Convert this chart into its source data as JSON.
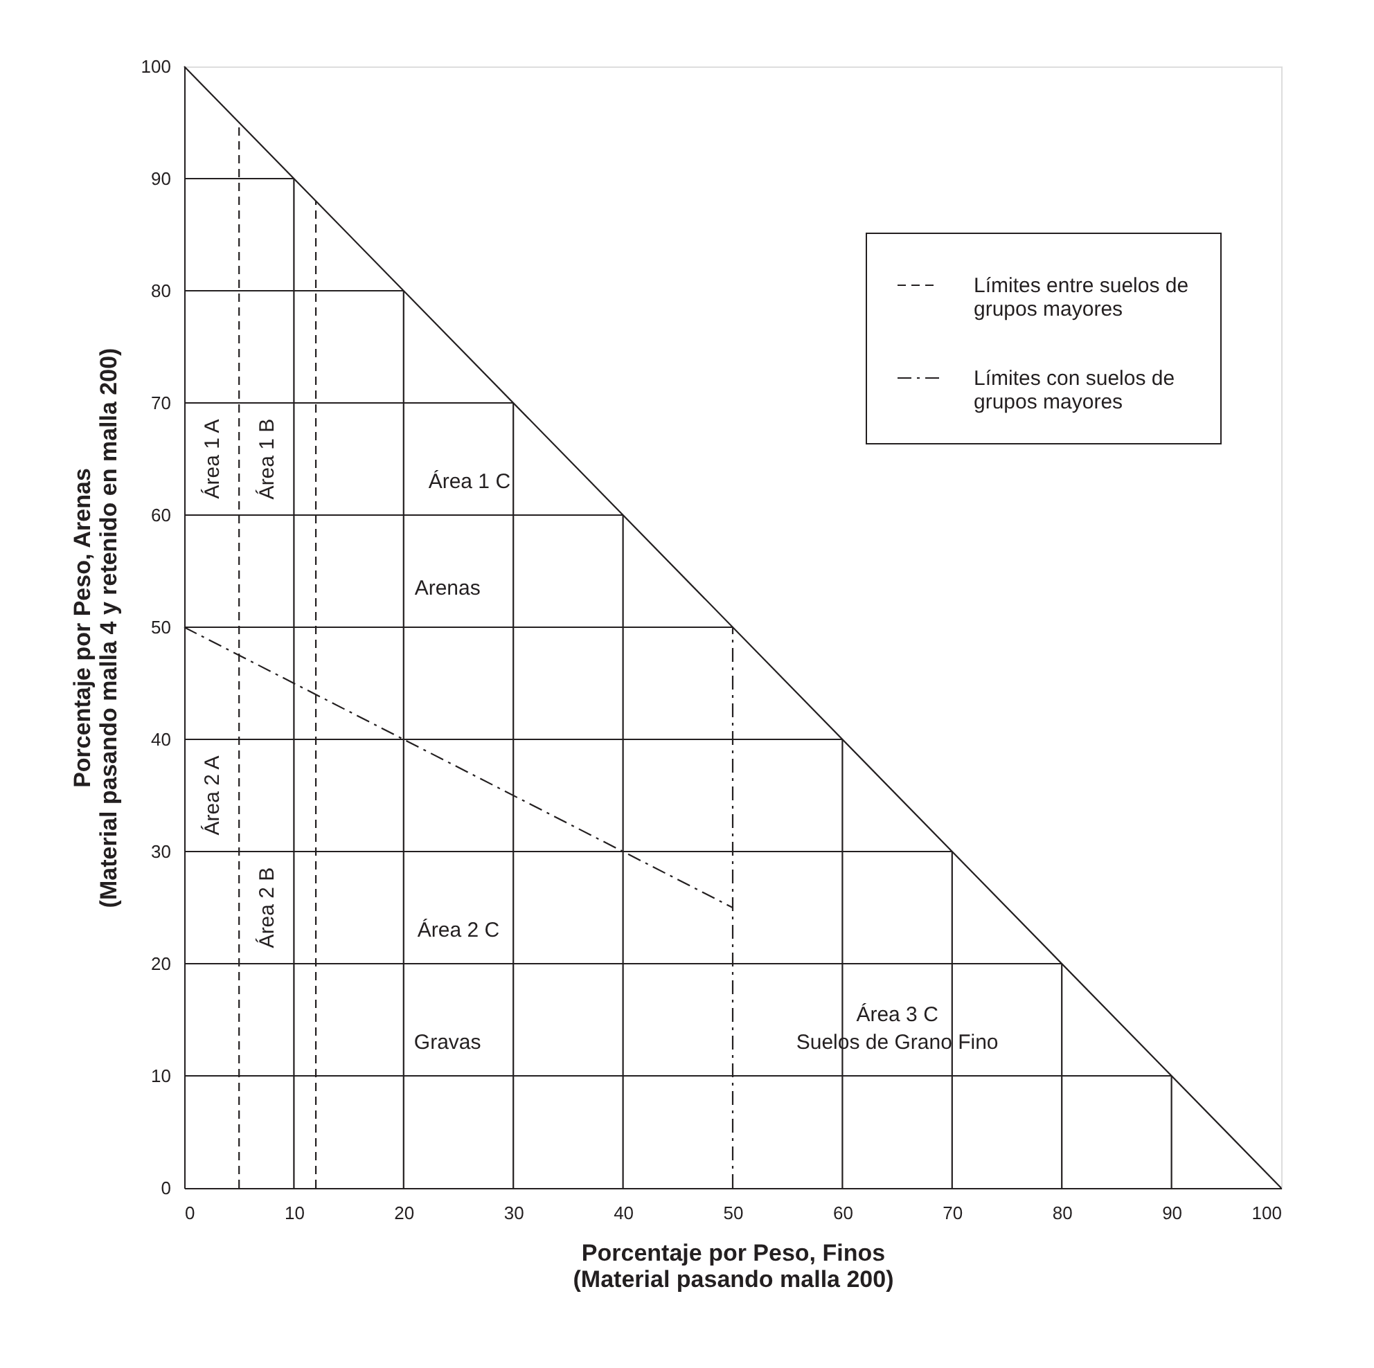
{
  "chart_data": {
    "type": "line",
    "xlabel": "Porcentaje por Peso, Finos\n(Material pasando malla 200)",
    "ylabel": "Porcentaje por Peso, Arenas\n(Material pasando malla 4 y retenido en malla 200)",
    "xlim": [
      0,
      100
    ],
    "ylim": [
      0,
      100
    ],
    "xticks": [
      0,
      10,
      20,
      30,
      40,
      50,
      60,
      70,
      80,
      90,
      100
    ],
    "yticks": [
      0,
      10,
      20,
      30,
      40,
      50,
      60,
      70,
      80,
      90,
      100
    ],
    "legend": "top right",
    "series": [
      {
        "color": "#231f20",
        "line_style": "solid",
        "x": [
          0,
          100
        ],
        "values": [
          100,
          0
        ]
      },
      {
        "color": "#231f20",
        "line_style": "solid",
        "x": [
          0,
          90
        ],
        "values": [
          10,
          10
        ]
      },
      {
        "color": "#231f20",
        "line_style": "solid",
        "x": [
          0,
          80
        ],
        "values": [
          20,
          20
        ]
      },
      {
        "color": "#231f20",
        "line_style": "solid",
        "x": [
          0,
          70
        ],
        "values": [
          30,
          30
        ]
      },
      {
        "color": "#231f20",
        "line_style": "solid",
        "x": [
          0,
          60
        ],
        "values": [
          40,
          40
        ]
      },
      {
        "color": "#231f20",
        "line_style": "solid",
        "x": [
          0,
          50
        ],
        "values": [
          50,
          50
        ]
      },
      {
        "color": "#231f20",
        "line_style": "solid",
        "x": [
          0,
          40
        ],
        "values": [
          60,
          60
        ]
      },
      {
        "color": "#231f20",
        "line_style": "solid",
        "x": [
          0,
          30
        ],
        "values": [
          70,
          70
        ]
      },
      {
        "color": "#231f20",
        "line_style": "solid",
        "x": [
          0,
          20
        ],
        "values": [
          80,
          80
        ]
      },
      {
        "color": "#231f20",
        "line_style": "solid",
        "x": [
          0,
          10
        ],
        "values": [
          90,
          90
        ]
      },
      {
        "color": "#231f20",
        "line_style": "solid",
        "x": [
          10,
          10
        ],
        "values": [
          0,
          90
        ]
      },
      {
        "color": "#231f20",
        "line_style": "solid",
        "x": [
          20,
          20
        ],
        "values": [
          0,
          80
        ]
      },
      {
        "color": "#231f20",
        "line_style": "solid",
        "x": [
          30,
          30
        ],
        "values": [
          0,
          70
        ]
      },
      {
        "color": "#231f20",
        "line_style": "solid",
        "x": [
          40,
          40
        ],
        "values": [
          0,
          60
        ]
      },
      {
        "color": "#231f20",
        "line_style": "solid",
        "x": [
          60,
          60
        ],
        "values": [
          0,
          40
        ]
      },
      {
        "color": "#231f20",
        "line_style": "solid",
        "x": [
          70,
          70
        ],
        "values": [
          0,
          30
        ]
      },
      {
        "color": "#231f20",
        "line_style": "solid",
        "x": [
          80,
          80
        ],
        "values": [
          0,
          20
        ]
      },
      {
        "color": "#231f20",
        "line_style": "solid",
        "x": [
          90,
          90
        ],
        "values": [
          0,
          10
        ]
      },
      {
        "name": "Límites entre suelos de grupos mayores",
        "color": "#231f20",
        "line_style": "dashed",
        "x": [
          5,
          5
        ],
        "values": [
          0,
          95
        ]
      },
      {
        "color": "#231f20",
        "line_style": "dashed",
        "x": [
          12,
          12
        ],
        "values": [
          0,
          88
        ]
      },
      {
        "name": "Límites con suelos de grupos mayores",
        "color": "#231f20",
        "line_style": "dashdot",
        "x": [
          0,
          50
        ],
        "values": [
          50,
          25
        ]
      },
      {
        "color": "#231f20",
        "line_style": "dashdot",
        "x": [
          50,
          50
        ],
        "values": [
          0,
          50
        ]
      }
    ],
    "annotations": [
      "Área 1 A",
      "Área 1 B",
      "Área 1 C",
      "Arenas",
      "Área 2 A",
      "Área 2 B",
      "Área 2 C",
      "Gravas",
      "Área 3 C",
      "Suelos de Grano Fino"
    ]
  }
}
